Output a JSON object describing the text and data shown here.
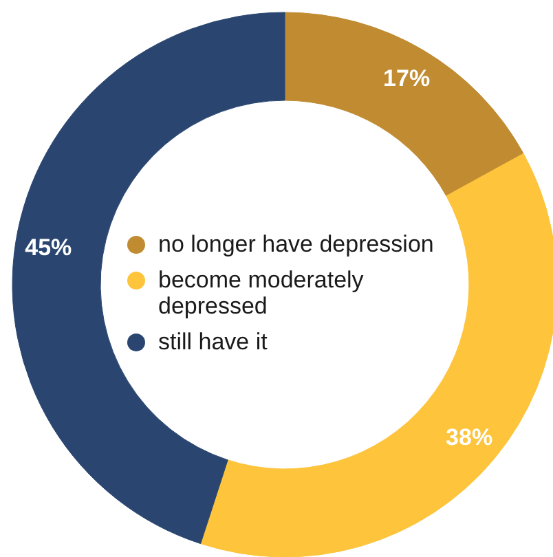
{
  "chart_data": {
    "type": "donut",
    "categories": [
      "no longer have depression",
      "become moderately depressed",
      "still have it"
    ],
    "values": [
      17,
      38,
      45
    ],
    "colors": [
      "#c08b31",
      "#fdc43c",
      "#2a4670"
    ],
    "value_labels": [
      "17%",
      "38%",
      "45%"
    ],
    "legend": "center"
  }
}
